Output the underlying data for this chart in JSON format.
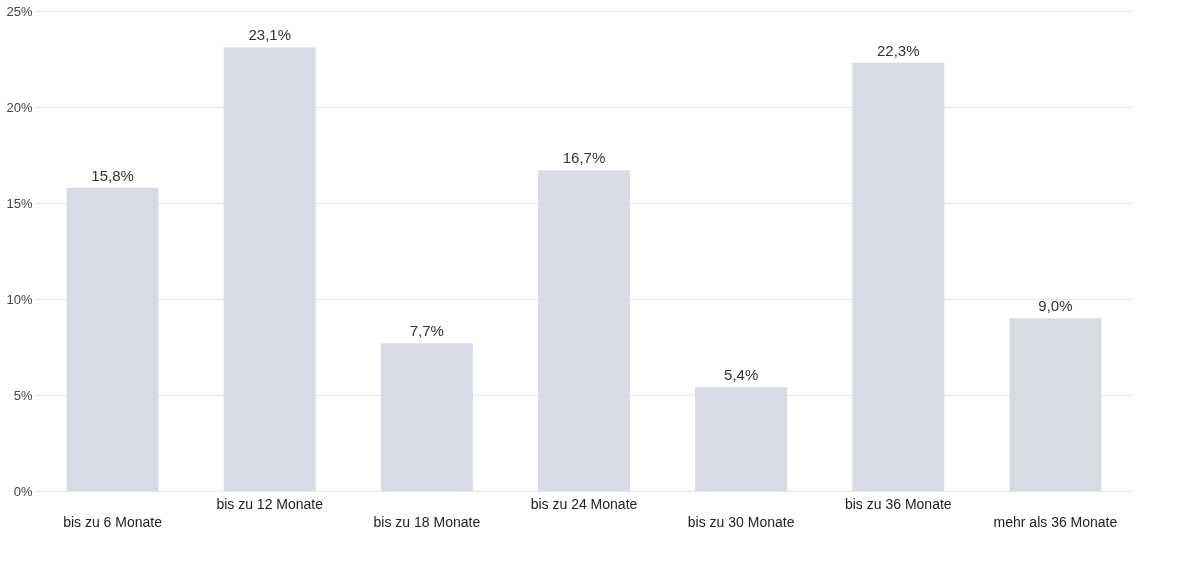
{
  "chart_data": {
    "type": "bar",
    "categories": [
      "bis zu 6 Monate",
      "bis zu 12 Monate",
      "bis zu 18 Monate",
      "bis zu 24 Monate",
      "bis zu 30 Monate",
      "bis zu 36 Monate",
      "mehr als 36 Monate"
    ],
    "values": [
      15.8,
      23.1,
      7.7,
      16.7,
      5.4,
      22.3,
      9.0
    ],
    "value_labels": [
      "15,8%",
      "23,1%",
      "7,7%",
      "16,7%",
      "5,4%",
      "22,3%",
      "9,0%"
    ],
    "color": "#d8dae6",
    "ylim": [
      0,
      25
    ],
    "yticks": [
      {
        "value": 0,
        "label": "0%"
      },
      {
        "value": 5,
        "label": "5%"
      },
      {
        "value": 10,
        "label": "10%"
      },
      {
        "value": 15,
        "label": "15%"
      },
      {
        "value": 20,
        "label": "20%"
      },
      {
        "value": 25,
        "label": "25%"
      }
    ],
    "grid": "y"
  }
}
